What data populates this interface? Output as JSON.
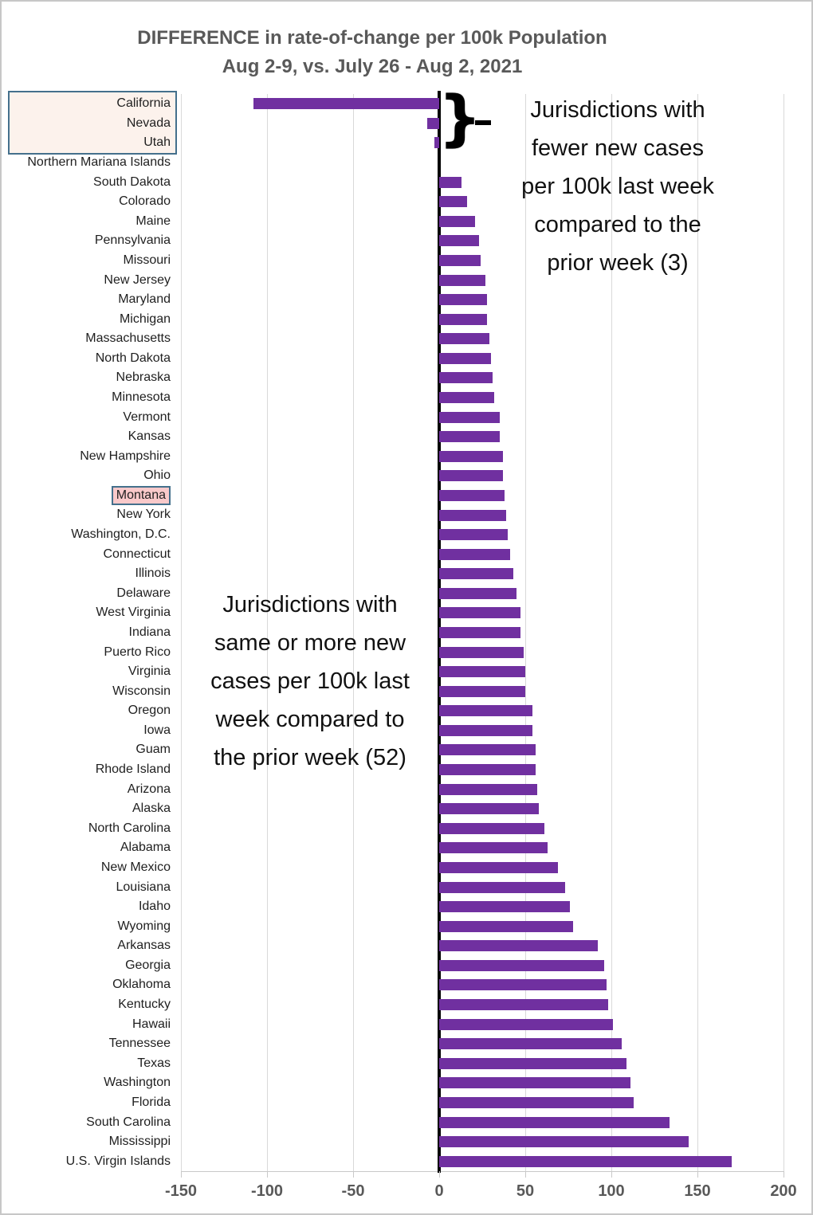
{
  "title": {
    "line1": "DIFFERENCE in rate-of-change per 100k Population",
    "line2": "Aug 2-9, vs. July 26 - Aug 2, 2021"
  },
  "chart_data": {
    "type": "bar",
    "orientation": "horizontal",
    "title": "DIFFERENCE in rate-of-change per 100k Population Aug 2-9, vs. July 26 - Aug 2, 2021",
    "xlabel": "",
    "ylabel": "",
    "xlim": [
      -150,
      200
    ],
    "x_ticks": [
      -150,
      -100,
      -50,
      0,
      50,
      100,
      150,
      200
    ],
    "grid": true,
    "bar_color": "#7030A0",
    "categories": [
      "California",
      "Nevada",
      "Utah",
      "Northern Mariana Islands",
      "South Dakota",
      "Colorado",
      "Maine",
      "Pennsylvania",
      "Missouri",
      "New Jersey",
      "Maryland",
      "Michigan",
      "Massachusetts",
      "North Dakota",
      "Nebraska",
      "Minnesota",
      "Vermont",
      "Kansas",
      "New Hampshire",
      "Ohio",
      "Montana",
      "New York",
      "Washington, D.C.",
      "Connecticut",
      "Illinois",
      "Delaware",
      "West Virginia",
      "Indiana",
      "Puerto Rico",
      "Virginia",
      "Wisconsin",
      "Oregon",
      "Iowa",
      "Guam",
      "Rhode Island",
      "Arizona",
      "Alaska",
      "North Carolina",
      "Alabama",
      "New Mexico",
      "Louisiana",
      "Idaho",
      "Wyoming",
      "Arkansas",
      "Georgia",
      "Oklahoma",
      "Kentucky",
      "Hawaii",
      "Tennessee",
      "Texas",
      "Washington",
      "Florida",
      "South Carolina",
      "Mississippi",
      "U.S. Virgin Islands"
    ],
    "values": [
      -108,
      -7,
      -3,
      0,
      13,
      16,
      21,
      23,
      24,
      27,
      28,
      28,
      29,
      30,
      31,
      32,
      35,
      35,
      37,
      37,
      38,
      39,
      40,
      41,
      43,
      45,
      47,
      47,
      49,
      50,
      50,
      54,
      54,
      56,
      56,
      57,
      58,
      61,
      63,
      69,
      73,
      76,
      78,
      92,
      96,
      97,
      98,
      101,
      106,
      109,
      111,
      113,
      134,
      145,
      170
    ],
    "highlight_group_box": {
      "categories": [
        "California",
        "Nevada",
        "Utah"
      ],
      "fill": "#FCF2EC",
      "border": "#44708C"
    },
    "highlight_single_box": {
      "category": "Montana",
      "fill": "#F9C9CA",
      "border": "#44708C"
    }
  },
  "annotations": {
    "negative_group": {
      "brace_glyph": "}",
      "lines": [
        "Jurisdictions with",
        "fewer new cases",
        "per 100k last week",
        "compared to the",
        "prior week (3)"
      ]
    },
    "positive_group": {
      "lines": [
        "Jurisdictions with",
        "same or more new",
        "cases per 100k last",
        "week compared to",
        "the prior week (52)"
      ]
    }
  }
}
